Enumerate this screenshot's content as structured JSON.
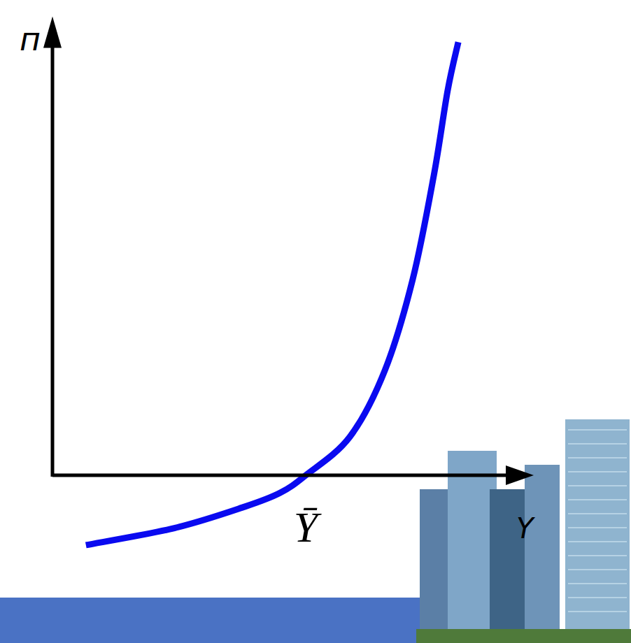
{
  "chart_data": {
    "type": "line",
    "x_label": "Y",
    "y_label": "п",
    "x": [
      0.66,
      2.42,
      3.8,
      4.49,
      5.0,
      5.87,
      6.56,
      7.11,
      7.53,
      7.8,
      8.01
    ],
    "values": [
      -1.38,
      -1.04,
      -0.62,
      -0.35,
      0,
      0.76,
      2.07,
      3.87,
      5.94,
      7.6,
      8.56
    ],
    "color": "#0a0af0",
    "xlim": [
      0,
      9.5
    ],
    "ylim": [
      -1.5,
      9
    ],
    "xticks": [
      {
        "value": 5,
        "label": "Ȳ"
      }
    ],
    "yticks": [],
    "tick_labels": "x",
    "grid": false
  }
}
